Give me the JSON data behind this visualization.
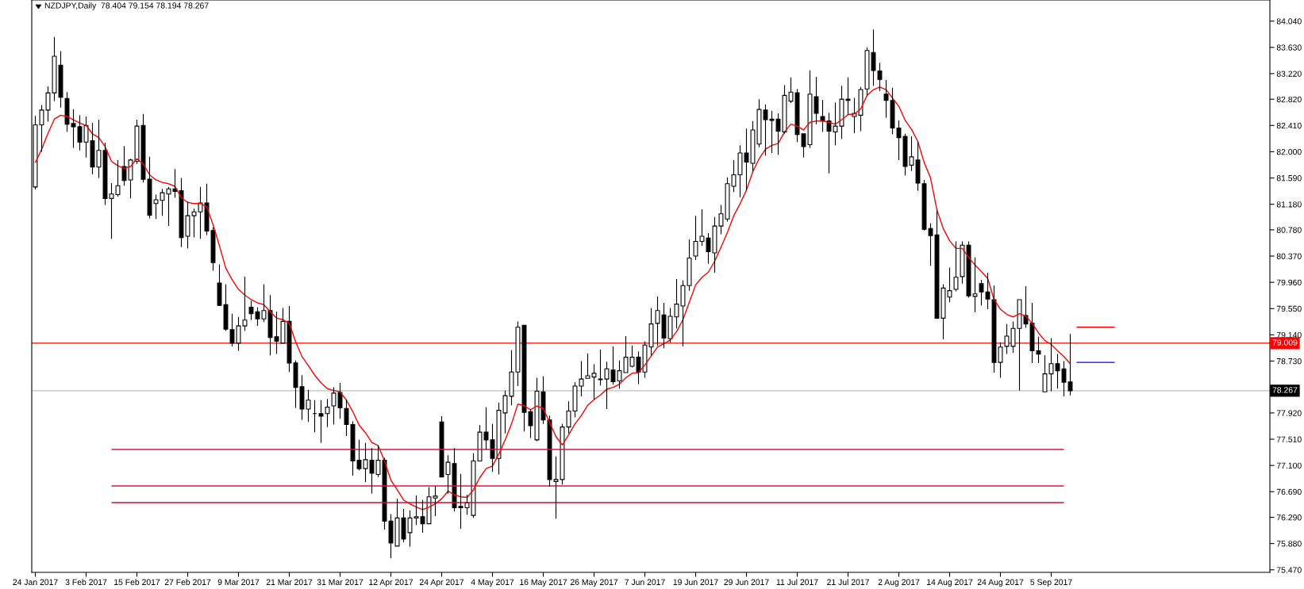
{
  "chart_data": {
    "type": "candlestick",
    "title": "NZDJPY,Daily  78.404 79.154 78.194 78.267",
    "categories": [
      "24 Jan 2017",
      null,
      null,
      null,
      null,
      null,
      null,
      null,
      "3 Feb 2017",
      null,
      null,
      null,
      null,
      null,
      null,
      null,
      "15 Feb 2017",
      null,
      null,
      null,
      null,
      null,
      null,
      null,
      "27 Feb 2017",
      null,
      null,
      null,
      null,
      null,
      null,
      null,
      "9 Mar 2017",
      null,
      null,
      null,
      null,
      null,
      null,
      null,
      "21 Mar 2017",
      null,
      null,
      null,
      null,
      null,
      null,
      null,
      "31 Mar 2017",
      null,
      null,
      null,
      null,
      null,
      null,
      null,
      "12 Apr 2017",
      null,
      null,
      null,
      null,
      null,
      null,
      null,
      "24 Apr 2017",
      null,
      null,
      null,
      null,
      null,
      null,
      null,
      "4 May 2017",
      null,
      null,
      null,
      null,
      null,
      null,
      null,
      "16 May 2017",
      null,
      null,
      null,
      null,
      null,
      null,
      null,
      "26 May 2017",
      null,
      null,
      null,
      null,
      null,
      null,
      null,
      "7 Jun 2017",
      null,
      null,
      null,
      null,
      null,
      null,
      null,
      "19 Jun 2017",
      null,
      null,
      null,
      null,
      null,
      null,
      null,
      "29 Jun 2017",
      null,
      null,
      null,
      null,
      null,
      null,
      null,
      "11 Jul 2017",
      null,
      null,
      null,
      null,
      null,
      null,
      null,
      "21 Jul 2017",
      null,
      null,
      null,
      null,
      null,
      null,
      null,
      "2 Aug 2017",
      null,
      null,
      null,
      null,
      null,
      null,
      null,
      "14 Aug 2017",
      null,
      null,
      null,
      null,
      null,
      null,
      null,
      "24 Aug 2017",
      null,
      null,
      null,
      null,
      null,
      null,
      null,
      "5 Sep 2017",
      null,
      null,
      null,
      null,
      null,
      null,
      null,
      null,
      null,
      null
    ],
    "ohlc": [
      [
        81.45,
        82.56,
        81.41,
        82.42
      ],
      [
        82.42,
        82.73,
        82.0,
        82.65
      ],
      [
        82.65,
        83.02,
        82.47,
        82.92
      ],
      [
        82.92,
        83.79,
        82.79,
        83.49
      ],
      [
        83.35,
        83.57,
        82.69,
        82.85
      ],
      [
        82.83,
        82.93,
        82.31,
        82.43
      ],
      [
        82.44,
        82.66,
        82.06,
        82.39
      ],
      [
        82.39,
        82.57,
        82.02,
        82.15
      ],
      [
        82.15,
        82.55,
        81.91,
        82.41
      ],
      [
        82.17,
        82.45,
        81.65,
        81.76
      ],
      [
        81.76,
        82.5,
        81.59,
        82.02
      ],
      [
        82.02,
        82.14,
        81.17,
        81.27
      ],
      [
        81.27,
        81.51,
        80.64,
        81.34
      ],
      [
        81.33,
        81.87,
        81.3,
        81.47
      ],
      [
        81.77,
        82.09,
        81.47,
        81.55
      ],
      [
        81.56,
        81.89,
        81.27,
        81.87
      ],
      [
        81.85,
        82.5,
        81.81,
        82.4
      ],
      [
        82.41,
        82.59,
        81.52,
        81.57
      ],
      [
        81.57,
        81.92,
        80.96,
        81.01
      ],
      [
        81.19,
        81.33,
        80.95,
        81.25
      ],
      [
        81.24,
        81.42,
        81.0,
        81.36
      ],
      [
        81.34,
        81.45,
        80.84,
        81.42
      ],
      [
        81.42,
        81.73,
        81.28,
        81.38
      ],
      [
        81.39,
        81.59,
        80.51,
        80.66
      ],
      [
        80.68,
        81.22,
        80.49,
        81.0
      ],
      [
        81.0,
        81.11,
        80.66,
        81.06
      ],
      [
        81.06,
        81.45,
        80.64,
        81.2
      ],
      [
        81.2,
        81.5,
        80.7,
        80.76
      ],
      [
        80.77,
        80.82,
        80.14,
        80.27
      ],
      [
        79.95,
        80.24,
        79.59,
        79.6
      ],
      [
        79.61,
        79.93,
        79.2,
        79.23
      ],
      [
        79.22,
        79.47,
        78.96,
        79.01
      ],
      [
        79.01,
        79.42,
        78.89,
        79.28
      ],
      [
        79.28,
        80.05,
        79.2,
        79.37
      ],
      [
        79.57,
        79.67,
        79.37,
        79.47
      ],
      [
        79.5,
        79.57,
        79.28,
        79.39
      ],
      [
        79.39,
        79.93,
        79.34,
        79.52
      ],
      [
        79.52,
        79.76,
        78.82,
        79.1
      ],
      [
        79.11,
        79.5,
        78.84,
        79.04
      ],
      [
        79.01,
        79.56,
        79.01,
        79.35
      ],
      [
        79.35,
        79.59,
        78.56,
        78.7
      ],
      [
        78.7,
        78.74,
        78.0,
        78.32
      ],
      [
        78.33,
        78.51,
        77.81,
        77.98
      ],
      [
        77.98,
        78.28,
        77.78,
        78.12
      ],
      [
        77.91,
        78.12,
        77.62,
        77.91
      ],
      [
        77.91,
        78.12,
        77.45,
        77.87
      ],
      [
        77.91,
        78.14,
        77.7,
        78.01
      ],
      [
        78.03,
        78.32,
        77.74,
        78.23
      ],
      [
        78.24,
        78.39,
        77.83,
        78.0
      ],
      [
        77.99,
        78.13,
        77.56,
        77.74
      ],
      [
        77.74,
        77.79,
        76.94,
        77.17
      ],
      [
        77.18,
        77.5,
        77.02,
        77.05
      ],
      [
        77.05,
        77.45,
        76.84,
        77.19
      ],
      [
        77.18,
        77.37,
        76.66,
        76.98
      ],
      [
        76.96,
        77.41,
        76.92,
        77.18
      ],
      [
        77.18,
        77.22,
        76.1,
        76.23
      ],
      [
        76.23,
        76.34,
        75.65,
        75.89
      ],
      [
        75.84,
        76.58,
        75.84,
        76.28
      ],
      [
        76.28,
        76.42,
        75.9,
        75.95
      ],
      [
        76.05,
        76.4,
        75.83,
        76.28
      ],
      [
        76.28,
        76.63,
        76.17,
        76.3
      ],
      [
        76.3,
        76.56,
        76.05,
        76.19
      ],
      [
        76.19,
        76.76,
        76.19,
        76.61
      ],
      [
        76.59,
        76.78,
        76.31,
        76.62
      ],
      [
        77.78,
        77.87,
        76.92,
        76.92
      ],
      [
        76.96,
        77.26,
        76.66,
        77.15
      ],
      [
        77.13,
        77.37,
        76.38,
        76.44
      ],
      [
        76.46,
        76.97,
        76.11,
        76.44
      ],
      [
        76.44,
        76.64,
        76.33,
        76.52
      ],
      [
        76.32,
        77.29,
        76.28,
        77.17
      ],
      [
        77.17,
        77.73,
        77.17,
        77.62
      ],
      [
        77.62,
        78.01,
        77.35,
        77.5
      ],
      [
        77.5,
        77.75,
        77.0,
        77.21
      ],
      [
        77.21,
        78.08,
        76.96,
        77.96
      ],
      [
        77.92,
        78.27,
        77.6,
        78.19
      ],
      [
        78.18,
        78.9,
        78.04,
        78.56
      ],
      [
        78.56,
        79.35,
        78.34,
        79.26
      ],
      [
        79.29,
        79.29,
        77.63,
        77.93
      ],
      [
        77.94,
        77.97,
        77.53,
        77.72
      ],
      [
        77.5,
        78.47,
        77.48,
        78.26
      ],
      [
        78.25,
        78.49,
        77.75,
        77.81
      ],
      [
        77.81,
        77.88,
        76.77,
        76.88
      ],
      [
        76.85,
        77.24,
        76.27,
        76.88
      ],
      [
        76.88,
        77.75,
        76.8,
        77.7
      ],
      [
        77.7,
        78.1,
        77.6,
        77.95
      ],
      [
        77.95,
        78.4,
        77.85,
        78.34
      ],
      [
        78.34,
        78.73,
        78.18,
        78.45
      ],
      [
        78.46,
        78.85,
        78.46,
        78.5
      ],
      [
        78.48,
        78.68,
        78.13,
        78.54
      ],
      [
        78.45,
        78.91,
        78.35,
        78.44
      ],
      [
        78.45,
        78.72,
        77.98,
        78.61
      ],
      [
        78.59,
        78.96,
        78.36,
        78.41
      ],
      [
        78.42,
        78.74,
        78.3,
        78.58
      ],
      [
        78.55,
        79.12,
        78.55,
        78.79
      ],
      [
        78.65,
        78.97,
        78.63,
        78.79
      ],
      [
        78.79,
        78.88,
        78.37,
        78.56
      ],
      [
        78.56,
        79.04,
        78.47,
        78.98
      ],
      [
        78.95,
        79.56,
        78.82,
        79.31
      ],
      [
        79.32,
        79.74,
        78.97,
        79.52
      ],
      [
        79.45,
        79.64,
        78.93,
        79.09
      ],
      [
        79.08,
        79.56,
        79.02,
        79.43
      ],
      [
        79.42,
        80.01,
        79.24,
        79.62
      ],
      [
        79.59,
        79.99,
        78.96,
        79.91
      ],
      [
        79.91,
        80.63,
        79.83,
        80.34
      ],
      [
        80.37,
        81.0,
        80.31,
        80.6
      ],
      [
        80.6,
        81.1,
        80.53,
        80.68
      ],
      [
        80.65,
        80.73,
        80.25,
        80.44
      ],
      [
        80.42,
        80.98,
        80.11,
        80.84
      ],
      [
        80.84,
        81.17,
        80.71,
        81.03
      ],
      [
        80.95,
        81.6,
        80.91,
        81.5
      ],
      [
        81.46,
        81.87,
        81.37,
        81.64
      ],
      [
        81.64,
        82.1,
        81.29,
        81.98
      ],
      [
        81.98,
        82.36,
        81.4,
        81.84
      ],
      [
        81.82,
        82.48,
        81.69,
        82.34
      ],
      [
        82.12,
        82.82,
        82.07,
        82.66
      ],
      [
        82.65,
        82.74,
        81.94,
        82.5
      ],
      [
        82.51,
        82.64,
        81.98,
        82.49
      ],
      [
        82.51,
        82.6,
        81.95,
        82.32
      ],
      [
        82.31,
        83.04,
        82.28,
        82.88
      ],
      [
        82.79,
        83.16,
        82.76,
        82.93
      ],
      [
        82.92,
        82.98,
        82.15,
        82.27
      ],
      [
        82.28,
        82.28,
        81.91,
        82.08
      ],
      [
        82.11,
        83.27,
        82.06,
        82.9
      ],
      [
        82.86,
        83.17,
        82.43,
        82.6
      ],
      [
        82.55,
        82.81,
        82.31,
        82.48
      ],
      [
        82.48,
        82.61,
        81.66,
        82.32
      ],
      [
        82.31,
        82.77,
        82.1,
        82.4
      ],
      [
        82.4,
        83.03,
        82.2,
        82.82
      ],
      [
        82.82,
        83.16,
        82.58,
        82.8
      ],
      [
        82.55,
        82.84,
        82.29,
        82.6
      ],
      [
        82.57,
        83.01,
        82.32,
        82.97
      ],
      [
        82.98,
        83.63,
        82.88,
        83.58
      ],
      [
        83.55,
        83.91,
        83.03,
        83.27
      ],
      [
        83.26,
        83.39,
        82.95,
        83.13
      ],
      [
        82.9,
        83.12,
        82.53,
        82.8
      ],
      [
        82.8,
        83.0,
        82.27,
        82.37
      ],
      [
        82.37,
        82.49,
        81.87,
        82.22
      ],
      [
        82.24,
        82.28,
        81.63,
        81.77
      ],
      [
        81.79,
        82.24,
        81.7,
        81.92
      ],
      [
        81.87,
        82.16,
        81.39,
        81.51
      ],
      [
        81.5,
        81.56,
        80.77,
        80.79
      ],
      [
        80.8,
        80.88,
        80.22,
        80.69
      ],
      [
        80.7,
        81.09,
        79.39,
        79.4
      ],
      [
        79.4,
        79.93,
        79.07,
        79.87
      ],
      [
        79.73,
        80.19,
        79.65,
        79.83
      ],
      [
        79.85,
        80.6,
        79.82,
        80.04
      ],
      [
        80.05,
        80.6,
        79.94,
        80.54
      ],
      [
        80.54,
        80.6,
        79.72,
        79.75
      ],
      [
        79.74,
        80.35,
        79.49,
        79.78
      ],
      [
        79.94,
        80.0,
        79.6,
        79.81
      ],
      [
        79.81,
        80.11,
        79.54,
        79.7
      ],
      [
        79.69,
        79.91,
        78.55,
        78.71
      ],
      [
        78.71,
        79.02,
        78.47,
        78.95
      ],
      [
        78.96,
        79.31,
        78.84,
        79.12
      ],
      [
        78.96,
        79.35,
        78.86,
        79.24
      ],
      [
        79.24,
        79.69,
        78.27,
        79.69
      ],
      [
        79.44,
        79.9,
        79.25,
        79.31
      ],
      [
        79.32,
        79.64,
        78.7,
        78.89
      ],
      [
        78.89,
        79.11,
        78.7,
        78.84
      ],
      [
        78.25,
        78.82,
        78.25,
        78.53
      ],
      [
        78.53,
        79.09,
        78.26,
        78.69
      ],
      [
        78.69,
        78.84,
        78.3,
        78.58
      ],
      [
        78.61,
        78.73,
        78.18,
        78.4
      ],
      [
        78.404,
        79.154,
        78.194,
        78.267
      ],
      null,
      null,
      null,
      null,
      null,
      null,
      null
    ],
    "series": [
      {
        "type": "line",
        "color": "#ff0000",
        "values": [
          81.83,
          82.04,
          82.29,
          82.51,
          82.57,
          82.55,
          82.5,
          82.45,
          82.41,
          82.28,
          82.22,
          82.08,
          81.85,
          81.78,
          81.74,
          81.77,
          81.89,
          81.81,
          81.64,
          81.56,
          81.52,
          81.5,
          81.46,
          81.28,
          81.21,
          81.19,
          81.19,
          81.14,
          80.86,
          80.53,
          80.18,
          80.0,
          79.85,
          79.76,
          79.69,
          79.64,
          79.61,
          79.5,
          79.4,
          79.38,
          79.32,
          79.03,
          78.8,
          78.66,
          78.51,
          78.39,
          78.3,
          78.27,
          78.25,
          78.12,
          77.94,
          77.73,
          77.61,
          77.46,
          77.41,
          77.17,
          76.87,
          76.72,
          76.56,
          76.5,
          76.45,
          76.41,
          76.45,
          76.5,
          76.58,
          76.7,
          76.64,
          76.61,
          76.6,
          76.72,
          76.91,
          77.05,
          77.09,
          77.28,
          77.5,
          77.75,
          78.06,
          78.03,
          77.97,
          78.03,
          77.99,
          77.77,
          77.55,
          77.42,
          77.58,
          77.75,
          77.88,
          78.04,
          78.13,
          78.2,
          78.29,
          78.32,
          78.37,
          78.47,
          78.54,
          78.55,
          78.67,
          78.81,
          78.95,
          79.0,
          79.06,
          79.19,
          79.38,
          79.65,
          79.92,
          80.04,
          80.12,
          80.29,
          80.51,
          80.74,
          81.0,
          81.19,
          81.4,
          81.69,
          81.89,
          82.04,
          82.1,
          82.13,
          82.31,
          82.43,
          82.4,
          82.34,
          82.46,
          82.48,
          82.48,
          82.46,
          82.43,
          82.5,
          82.58,
          82.59,
          82.67,
          82.88,
          82.97,
          83.01,
          82.97,
          82.84,
          82.71,
          82.49,
          82.35,
          82.16,
          81.83,
          81.59,
          81.09,
          80.8,
          80.61,
          80.49,
          80.49,
          80.35,
          80.23,
          80.13,
          80.02,
          79.69,
          79.54,
          79.46,
          79.42,
          79.47,
          79.43,
          79.32,
          79.17,
          79.05,
          78.99,
          78.89,
          78.8,
          78.69,
          null,
          null,
          null,
          null,
          null,
          null,
          null
        ]
      },
      {
        "type": "line",
        "color": "#dc143c",
        "values": [
          null,
          null,
          null,
          null,
          null,
          null,
          null,
          null,
          null,
          null,
          null,
          null,
          77.35,
          77.35,
          77.35,
          77.35,
          77.35,
          77.35,
          77.35,
          77.35,
          77.35,
          77.35,
          77.35,
          77.35,
          77.35,
          77.35,
          77.35,
          77.35,
          77.35,
          77.35,
          77.35,
          77.35,
          77.35,
          77.35,
          77.35,
          77.35,
          77.35,
          77.35,
          77.35,
          77.35,
          77.35,
          77.35,
          77.35,
          77.35,
          77.35,
          77.35,
          77.35,
          77.35,
          77.35,
          77.35,
          77.35,
          77.35,
          77.35,
          77.35,
          77.35,
          77.35,
          77.35,
          77.35,
          77.35,
          77.35,
          77.35,
          77.35,
          77.35,
          77.35,
          77.35,
          77.35,
          77.35,
          77.35,
          77.35,
          77.35,
          77.35,
          77.35,
          77.35,
          77.35,
          77.35,
          77.35,
          77.35,
          77.35,
          77.35,
          77.35,
          77.35,
          77.35,
          77.35,
          77.35,
          77.35,
          77.35,
          77.35,
          77.35,
          77.35,
          77.35,
          77.35,
          77.35,
          77.35,
          77.35,
          77.35,
          77.35,
          77.35,
          77.35,
          77.35,
          77.35,
          77.35,
          77.35,
          77.35,
          77.35,
          77.35,
          77.35,
          77.35,
          77.35,
          77.35,
          77.35,
          77.35,
          77.35,
          77.35,
          77.35,
          77.35,
          77.35,
          77.35,
          77.35,
          77.35,
          77.35,
          77.35,
          77.35,
          77.35,
          77.35,
          77.35,
          77.35,
          77.35,
          77.35,
          77.35,
          77.35,
          77.35,
          77.35,
          77.35,
          77.35,
          77.35,
          77.35,
          77.35,
          77.35,
          77.35,
          77.35,
          77.35,
          77.35,
          77.35,
          77.35,
          77.35,
          77.35,
          77.35,
          77.35,
          77.35,
          77.35,
          77.35,
          77.35,
          77.35,
          77.35,
          77.35,
          77.35,
          77.35,
          77.35,
          77.35,
          77.35,
          77.35,
          77.35,
          77.35,
          null,
          null,
          null,
          null,
          null,
          null,
          null,
          null
        ]
      },
      {
        "type": "line",
        "color": "#dc143c",
        "values": [
          null,
          null,
          null,
          null,
          null,
          null,
          null,
          null,
          null,
          null,
          null,
          null,
          76.78,
          76.78,
          76.78,
          76.78,
          76.78,
          76.78,
          76.78,
          76.78,
          76.78,
          76.78,
          76.78,
          76.78,
          76.78,
          76.78,
          76.78,
          76.78,
          76.78,
          76.78,
          76.78,
          76.78,
          76.78,
          76.78,
          76.78,
          76.78,
          76.78,
          76.78,
          76.78,
          76.78,
          76.78,
          76.78,
          76.78,
          76.78,
          76.78,
          76.78,
          76.78,
          76.78,
          76.78,
          76.78,
          76.78,
          76.78,
          76.78,
          76.78,
          76.78,
          76.78,
          76.78,
          76.78,
          76.78,
          76.78,
          76.78,
          76.78,
          76.78,
          76.78,
          76.78,
          76.78,
          76.78,
          76.78,
          76.78,
          76.78,
          76.78,
          76.78,
          76.78,
          76.78,
          76.78,
          76.78,
          76.78,
          76.78,
          76.78,
          76.78,
          76.78,
          76.78,
          76.78,
          76.78,
          76.78,
          76.78,
          76.78,
          76.78,
          76.78,
          76.78,
          76.78,
          76.78,
          76.78,
          76.78,
          76.78,
          76.78,
          76.78,
          76.78,
          76.78,
          76.78,
          76.78,
          76.78,
          76.78,
          76.78,
          76.78,
          76.78,
          76.78,
          76.78,
          76.78,
          76.78,
          76.78,
          76.78,
          76.78,
          76.78,
          76.78,
          76.78,
          76.78,
          76.78,
          76.78,
          76.78,
          76.78,
          76.78,
          76.78,
          76.78,
          76.78,
          76.78,
          76.78,
          76.78,
          76.78,
          76.78,
          76.78,
          76.78,
          76.78,
          76.78,
          76.78,
          76.78,
          76.78,
          76.78,
          76.78,
          76.78,
          76.78,
          76.78,
          76.78,
          76.78,
          76.78,
          76.78,
          76.78,
          76.78,
          76.78,
          76.78,
          76.78,
          76.78,
          76.78,
          76.78,
          76.78,
          76.78,
          76.78,
          76.78,
          76.78,
          76.78,
          76.78,
          76.78,
          76.78,
          null,
          null,
          null,
          null,
          null,
          null,
          null,
          null
        ]
      },
      {
        "type": "line",
        "color": "#c8102e",
        "values": [
          null,
          null,
          null,
          null,
          null,
          null,
          null,
          null,
          null,
          null,
          null,
          null,
          76.52,
          76.52,
          76.52,
          76.52,
          76.52,
          76.52,
          76.52,
          76.52,
          76.52,
          76.52,
          76.52,
          76.52,
          76.52,
          76.52,
          76.52,
          76.52,
          76.52,
          76.52,
          76.52,
          76.52,
          76.52,
          76.52,
          76.52,
          76.52,
          76.52,
          76.52,
          76.52,
          76.52,
          76.52,
          76.52,
          76.52,
          76.52,
          76.52,
          76.52,
          76.52,
          76.52,
          76.52,
          76.52,
          76.52,
          76.52,
          76.52,
          76.52,
          76.52,
          76.52,
          76.52,
          76.52,
          76.52,
          76.52,
          76.52,
          76.52,
          76.52,
          76.52,
          76.52,
          76.52,
          76.52,
          76.52,
          76.52,
          76.52,
          76.52,
          76.52,
          76.52,
          76.52,
          76.52,
          76.52,
          76.52,
          76.52,
          76.52,
          76.52,
          76.52,
          76.52,
          76.52,
          76.52,
          76.52,
          76.52,
          76.52,
          76.52,
          76.52,
          76.52,
          76.52,
          76.52,
          76.52,
          76.52,
          76.52,
          76.52,
          76.52,
          76.52,
          76.52,
          76.52,
          76.52,
          76.52,
          76.52,
          76.52,
          76.52,
          76.52,
          76.52,
          76.52,
          76.52,
          76.52,
          76.52,
          76.52,
          76.52,
          76.52,
          76.52,
          76.52,
          76.52,
          76.52,
          76.52,
          76.52,
          76.52,
          76.52,
          76.52,
          76.52,
          76.52,
          76.52,
          76.52,
          76.52,
          76.52,
          76.52,
          76.52,
          76.52,
          76.52,
          76.52,
          76.52,
          76.52,
          76.52,
          76.52,
          76.52,
          76.52,
          76.52,
          76.52,
          76.52,
          76.52,
          76.52,
          76.52,
          76.52,
          76.52,
          76.52,
          76.52,
          76.52,
          76.52,
          76.52,
          76.52,
          76.52,
          76.52,
          76.52,
          76.52,
          76.52,
          76.52,
          76.52,
          76.52,
          76.52,
          null,
          null,
          null,
          null,
          null,
          null,
          null,
          null
        ]
      },
      {
        "type": "line",
        "color": "#ff0000",
        "values": [
          null,
          null,
          null,
          null,
          null,
          null,
          null,
          null,
          null,
          null,
          null,
          null,
          null,
          null,
          null,
          null,
          null,
          null,
          null,
          null,
          null,
          null,
          null,
          null,
          null,
          null,
          null,
          null,
          null,
          null,
          null,
          null,
          null,
          null,
          null,
          null,
          null,
          null,
          null,
          null,
          null,
          null,
          null,
          null,
          null,
          null,
          null,
          null,
          null,
          null,
          null,
          null,
          null,
          null,
          null,
          null,
          null,
          null,
          null,
          null,
          null,
          null,
          null,
          null,
          null,
          null,
          null,
          null,
          null,
          null,
          null,
          null,
          null,
          null,
          null,
          null,
          null,
          null,
          null,
          null,
          null,
          null,
          null,
          null,
          null,
          null,
          null,
          null,
          null,
          null,
          null,
          null,
          null,
          null,
          null,
          null,
          null,
          null,
          null,
          null,
          null,
          null,
          null,
          null,
          null,
          null,
          null,
          null,
          null,
          null,
          null,
          null,
          null,
          null,
          null,
          null,
          null,
          null,
          null,
          null,
          null,
          null,
          null,
          null,
          null,
          null,
          null,
          null,
          null,
          null,
          null,
          null,
          null,
          null,
          null,
          null,
          null,
          null,
          null,
          null,
          null,
          null,
          null,
          null,
          null,
          null,
          null,
          null,
          null,
          null,
          null,
          null,
          null,
          null,
          null,
          null,
          null,
          null,
          null,
          null,
          null,
          null,
          null,
          null,
          79.26,
          79.26,
          79.26,
          79.26,
          79.26,
          79.26,
          79.26
        ]
      },
      {
        "type": "line",
        "color": "#0000ff",
        "values": [
          null,
          null,
          null,
          null,
          null,
          null,
          null,
          null,
          null,
          null,
          null,
          null,
          null,
          null,
          null,
          null,
          null,
          null,
          null,
          null,
          null,
          null,
          null,
          null,
          null,
          null,
          null,
          null,
          null,
          null,
          null,
          null,
          null,
          null,
          null,
          null,
          null,
          null,
          null,
          null,
          null,
          null,
          null,
          null,
          null,
          null,
          null,
          null,
          null,
          null,
          null,
          null,
          null,
          null,
          null,
          null,
          null,
          null,
          null,
          null,
          null,
          null,
          null,
          null,
          null,
          null,
          null,
          null,
          null,
          null,
          null,
          null,
          null,
          null,
          null,
          null,
          null,
          null,
          null,
          null,
          null,
          null,
          null,
          null,
          null,
          null,
          null,
          null,
          null,
          null,
          null,
          null,
          null,
          null,
          null,
          null,
          null,
          null,
          null,
          null,
          null,
          null,
          null,
          null,
          null,
          null,
          null,
          null,
          null,
          null,
          null,
          null,
          null,
          null,
          null,
          null,
          null,
          null,
          null,
          null,
          null,
          null,
          null,
          null,
          null,
          null,
          null,
          null,
          null,
          null,
          null,
          null,
          null,
          null,
          null,
          null,
          null,
          null,
          null,
          null,
          null,
          null,
          null,
          null,
          null,
          null,
          null,
          null,
          null,
          null,
          null,
          null,
          null,
          null,
          null,
          null,
          null,
          null,
          null,
          null,
          null,
          null,
          null,
          null,
          78.71,
          78.71,
          78.71,
          78.71,
          78.71,
          78.71,
          78.71
        ]
      }
    ],
    "ylim": [
      75.43,
      84.37
    ],
    "yticks": [
      {
        "value": 84.04,
        "label": "84.040"
      },
      {
        "value": 83.63,
        "label": "83.630"
      },
      {
        "value": 83.22,
        "label": "83.220"
      },
      {
        "value": 82.82,
        "label": "82.820"
      },
      {
        "value": 82.41,
        "label": "82.410"
      },
      {
        "value": 82.0,
        "label": "82.000"
      },
      {
        "value": 81.59,
        "label": "81.590"
      },
      {
        "value": 81.18,
        "label": "81.180"
      },
      {
        "value": 80.78,
        "label": "80.780"
      },
      {
        "value": 80.37,
        "label": "80.370"
      },
      {
        "value": 79.96,
        "label": "79.960"
      },
      {
        "value": 79.55,
        "label": "79.550"
      },
      {
        "value": 79.14,
        "label": "79.140"
      },
      {
        "value": 78.73,
        "label": "78.730"
      },
      {
        "value": 77.92,
        "label": "77.920"
      },
      {
        "value": 77.51,
        "label": "77.510"
      },
      {
        "value": 77.1,
        "label": "77.100"
      },
      {
        "value": 76.69,
        "label": "76.690"
      },
      {
        "value": 76.29,
        "label": "76.290"
      },
      {
        "value": 75.88,
        "label": "75.880"
      },
      {
        "value": 75.47,
        "label": "75.470"
      }
    ],
    "ref_lines": [
      {
        "axis": "y",
        "value": 79.009,
        "label": "79.009",
        "color": "#ff0000"
      },
      {
        "axis": "y",
        "value": 78.267,
        "label": "78.267",
        "color": "#c0c0c0"
      }
    ]
  }
}
